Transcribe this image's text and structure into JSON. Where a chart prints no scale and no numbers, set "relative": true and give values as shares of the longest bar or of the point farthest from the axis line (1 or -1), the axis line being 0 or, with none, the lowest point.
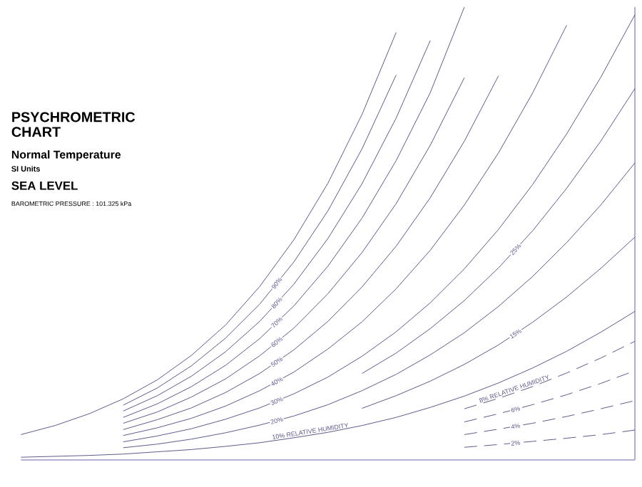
{
  "chart_data": {
    "type": "line",
    "relative": true,
    "title": "PSYCHROMETRIC CHART",
    "subtitle": "Normal Temperature",
    "annotations": [
      "SI Units",
      "SEA LEVEL",
      "BAROMETRIC PRESSURE : 101.325 kPa"
    ],
    "categories": [
      null,
      null,
      null,
      null,
      null,
      null,
      null,
      null,
      null,
      null,
      null,
      null,
      null,
      null,
      null,
      null,
      null,
      null,
      null
    ],
    "line_style": "solid",
    "marker": "none",
    "series": [
      {
        "color": "#5a5a8c",
        "values": [
          0.056,
          0.076,
          0.102,
          0.135,
          0.177,
          0.231,
          0.298,
          0.383,
          0.486,
          0.611,
          0.763,
          0.944,
          null,
          null,
          null,
          null,
          null,
          null,
          null
        ]
      },
      {
        "name": "90%",
        "color": "#5a5a8c",
        "values": [
          null,
          null,
          null,
          0.121,
          0.159,
          0.208,
          0.269,
          0.344,
          0.437,
          0.55,
          0.687,
          0.85,
          null,
          null,
          null,
          null,
          null,
          null,
          null
        ]
      },
      {
        "name": "80%",
        "color": "#5a5a8c",
        "values": [
          null,
          null,
          null,
          0.108,
          0.142,
          0.185,
          0.239,
          0.306,
          0.388,
          0.489,
          0.61,
          0.755,
          0.926,
          null,
          null,
          null,
          null,
          null,
          null
        ]
      },
      {
        "name": "70%",
        "color": "#5a5a8c",
        "values": [
          null,
          null,
          null,
          0.094,
          0.124,
          0.162,
          0.209,
          0.268,
          0.34,
          0.428,
          0.534,
          0.661,
          0.811,
          1.0,
          null,
          null,
          null,
          null,
          null
        ]
      },
      {
        "name": "60%",
        "color": "#5a5a8c",
        "values": [
          null,
          null,
          null,
          0.081,
          0.106,
          0.139,
          0.179,
          0.23,
          0.291,
          0.367,
          0.458,
          0.566,
          0.695,
          0.844,
          null,
          null,
          null,
          null,
          null
        ]
      },
      {
        "name": "50%",
        "color": "#5a5a8c",
        "values": [
          null,
          null,
          null,
          0.067,
          0.089,
          0.115,
          0.149,
          0.191,
          0.243,
          0.306,
          0.382,
          0.472,
          0.579,
          0.704,
          0.848,
          null,
          null,
          null,
          null
        ]
      },
      {
        "name": "40%",
        "color": "#5a5a8c",
        "values": [
          null,
          null,
          null,
          0.054,
          0.071,
          0.092,
          0.119,
          0.153,
          0.194,
          0.245,
          0.305,
          0.378,
          0.463,
          0.563,
          0.678,
          0.81,
          0.96,
          null,
          null
        ]
      },
      {
        "name": "30%",
        "color": "#5a5a8c",
        "values": [
          null,
          null,
          null,
          0.04,
          0.053,
          0.069,
          0.09,
          0.115,
          0.146,
          0.183,
          0.229,
          0.283,
          0.347,
          0.422,
          0.509,
          0.608,
          0.72,
          0.845,
          0.983
        ]
      },
      {
        "name": "25%",
        "color": "#5a5a8c",
        "values": [
          null,
          null,
          null,
          null,
          null,
          null,
          null,
          null,
          null,
          null,
          0.191,
          0.236,
          0.29,
          0.352,
          0.424,
          0.506,
          0.6,
          0.704,
          0.82
        ]
      },
      {
        "name": "20%",
        "color": "#5a5a8c",
        "values": [
          null,
          null,
          null,
          0.027,
          0.035,
          0.046,
          0.06,
          0.077,
          0.097,
          0.122,
          0.153,
          0.189,
          0.232,
          0.281,
          0.339,
          0.405,
          0.48,
          0.563,
          0.656
        ]
      },
      {
        "name": "15%",
        "color": "#5a5a8c",
        "values": [
          null,
          null,
          null,
          null,
          null,
          null,
          null,
          null,
          null,
          null,
          0.114,
          0.142,
          0.174,
          0.211,
          0.254,
          0.304,
          0.36,
          0.423,
          0.492
        ]
      },
      {
        "name": "10% RELATIVE HUMIDITY",
        "color": "#5a5a8c",
        "values": [
          0.006,
          0.008,
          0.01,
          0.013,
          0.018,
          0.023,
          0.03,
          0.038,
          0.049,
          0.061,
          0.076,
          0.094,
          0.116,
          0.141,
          0.17,
          0.203,
          0.24,
          0.282,
          0.328
        ]
      },
      {
        "name": "8% RELATIVE HUMIDITY",
        "color": "#5a5a8c",
        "line_style": "dashed",
        "values": [
          null,
          null,
          null,
          null,
          null,
          null,
          null,
          null,
          null,
          null,
          null,
          null,
          null,
          0.113,
          0.136,
          0.162,
          0.192,
          0.225,
          0.262
        ]
      },
      {
        "name": "6%",
        "color": "#5a5a8c",
        "line_style": "dashed",
        "values": [
          null,
          null,
          null,
          null,
          null,
          null,
          null,
          null,
          null,
          null,
          null,
          null,
          null,
          0.084,
          0.102,
          0.122,
          0.144,
          0.169,
          0.197
        ]
      },
      {
        "name": "4%",
        "color": "#5a5a8c",
        "line_style": "dashed",
        "values": [
          null,
          null,
          null,
          null,
          null,
          null,
          null,
          null,
          null,
          null,
          null,
          null,
          null,
          0.056,
          0.068,
          0.081,
          0.096,
          0.113,
          0.131
        ]
      },
      {
        "name": "2%",
        "color": "#5a5a8c",
        "line_style": "dashed",
        "values": [
          null,
          null,
          null,
          null,
          null,
          null,
          null,
          null,
          null,
          null,
          null,
          null,
          null,
          0.028,
          0.034,
          0.041,
          0.048,
          0.056,
          0.066
        ]
      }
    ]
  }
}
